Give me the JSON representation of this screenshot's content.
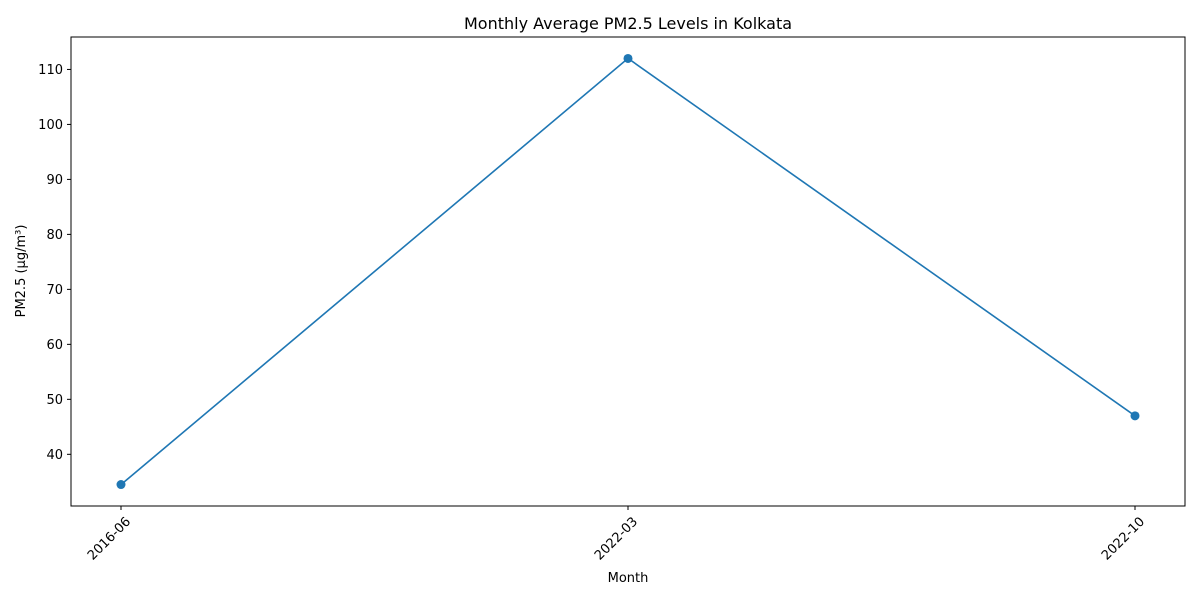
{
  "chart_data": {
    "type": "line",
    "title": "Monthly Average PM2.5 Levels in Kolkata",
    "xlabel": "Month",
    "ylabel": "PM2.5 (µg/m³)",
    "categories": [
      "2016-06",
      "2022-03",
      "2022-10"
    ],
    "series": [
      {
        "values": [
          34.5,
          112.0,
          47.0
        ],
        "color": "#1f77b4",
        "marker": "circle"
      }
    ],
    "yticks": [
      40,
      50,
      60,
      70,
      80,
      90,
      100,
      110
    ],
    "ylim": [
      30.6,
      115.9
    ],
    "x_tick_rotation_deg": 45,
    "grid": false
  }
}
